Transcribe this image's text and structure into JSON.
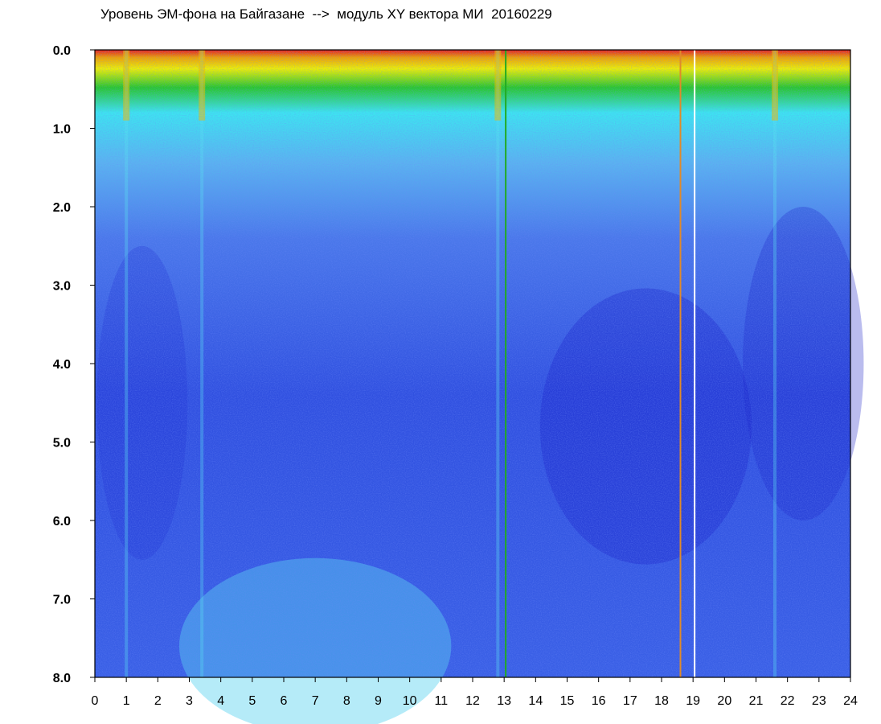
{
  "chart_data": {
    "type": "heatmap",
    "title": "Уровень ЭМ-фона на Байгазане  -->  модуль XY вектора МИ  20160229",
    "xlabel": "",
    "ylabel": "",
    "xlim": [
      0,
      24
    ],
    "ylim": [
      8.0,
      0.0
    ],
    "x_ticks": [
      "0",
      "1",
      "2",
      "3",
      "4",
      "5",
      "6",
      "7",
      "8",
      "9",
      "10",
      "11",
      "12",
      "13",
      "14",
      "15",
      "16",
      "17",
      "18",
      "19",
      "20",
      "21",
      "22",
      "23",
      "24"
    ],
    "y_ticks": [
      "0.0",
      "1.0",
      "2.0",
      "3.0",
      "4.0",
      "5.0",
      "6.0",
      "7.0",
      "8.0"
    ],
    "grid": false,
    "colorscale": [
      "#1a1ad8",
      "#3c5af0",
      "#5a96f0",
      "#3ce6f0",
      "#28c828",
      "#f0f000",
      "#f0a000",
      "#e61e1e"
    ],
    "bright_band_top": [
      0.0,
      0.7
    ],
    "vertical_lines": [
      {
        "x": 13.05,
        "color": "#22aa22"
      },
      {
        "x": 18.6,
        "color": "#e08a2a"
      },
      {
        "x": 19.05,
        "color": "#ffffff"
      }
    ],
    "intensity_dips": [
      1.0,
      3.4,
      12.8,
      21.6
    ]
  }
}
